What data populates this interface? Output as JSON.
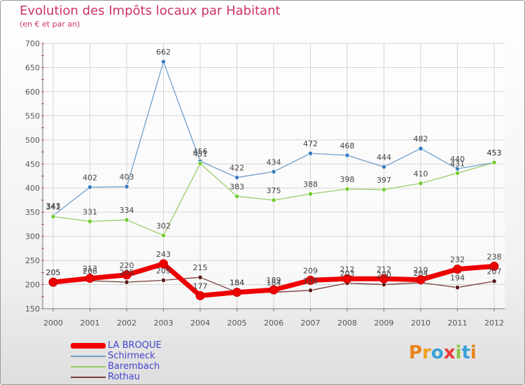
{
  "title": "Evolution des Impôts locaux par Habitant",
  "subtitle": "(en € et par an)",
  "logo": {
    "text": "Proxiti",
    "letters": [
      "P",
      "r",
      "o",
      "x",
      "i",
      "t",
      "i"
    ],
    "colors": [
      "#e8841a",
      "#f0a020",
      "#3aa0d8",
      "#e83a3a",
      "#8cc63f",
      "#3aa0d8",
      "#e8841a"
    ]
  },
  "chart_data": {
    "type": "line",
    "title": "Evolution des Impôts locaux par Habitant",
    "ylabel": "(en € et par an)",
    "xlabel": "",
    "ylim": [
      150,
      700
    ],
    "yticks": [
      150,
      200,
      250,
      300,
      350,
      400,
      450,
      500,
      550,
      600,
      650,
      700
    ],
    "x": [
      "2000",
      "2001",
      "2002",
      "2003",
      "2004",
      "2005",
      "2006",
      "2007",
      "2008",
      "2009",
      "2010",
      "2011",
      "2012"
    ],
    "series": [
      {
        "name": "Schirmeck",
        "color": "#6fa0cc",
        "dot": "#3a7fc0",
        "values": [
          343,
          402,
          403,
          662,
          456,
          422,
          434,
          472,
          468,
          444,
          482,
          440,
          453
        ]
      },
      {
        "name": "Barembach",
        "color": "#99cc66",
        "dot": "#77cc33",
        "values": [
          341,
          331,
          334,
          302,
          451,
          383,
          375,
          388,
          398,
          397,
          410,
          431,
          453
        ]
      },
      {
        "name": "Rothau",
        "color": "#7a3a3a",
        "dot": "#5a1a1a",
        "values": [
          205,
          208,
          205,
          209,
          215,
          184,
          184,
          188,
          203,
          200,
          204,
          194,
          207
        ]
      },
      {
        "name": "LA BROQUE",
        "color": "#ee0000",
        "dot": "#ee0000",
        "values": [
          205,
          213,
          220,
          243,
          177,
          184,
          189,
          209,
          212,
          212,
          210,
          232,
          238
        ]
      }
    ],
    "legend": [
      "LA BROQUE",
      "Schirmeck",
      "Barembach",
      "Rothau"
    ]
  }
}
